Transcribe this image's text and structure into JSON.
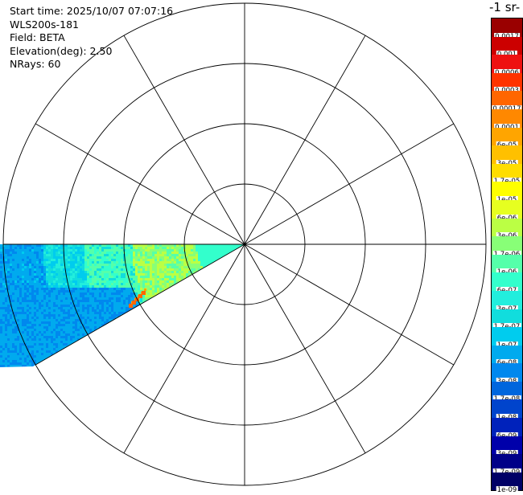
{
  "info": {
    "start_time": "Start time: 2025/10/07 07:07:16",
    "instrument": "WLS200s-181",
    "field": "Field: BETA",
    "elevation": "Elevation(deg): 2.50",
    "nrays": "NRays: 60"
  },
  "units_label": "-1 sr-",
  "chart_data": {
    "type": "heatmap",
    "projection": "polar",
    "field": "BETA",
    "rings": 4,
    "spokes_every_deg": 30,
    "sector_azimuth_deg": [
      240,
      270
    ],
    "colorbar": {
      "scale": "log",
      "ticks": [
        "0.0017",
        "0.001",
        "0.0006",
        "0.0003",
        "0.00017",
        "0.0001",
        "6e-05",
        "3e-05",
        "1.7e-05",
        "1e-05",
        "6e-06",
        "3e-06",
        "1.7e-06",
        "1e-06",
        "6e-07",
        "3e-07",
        "1.7e-07",
        "1e-07",
        "6e-08",
        "3e-08",
        "1.7e-08",
        "1e-08",
        "6e-09",
        "3e-09",
        "1.7e-09",
        "1e-09"
      ],
      "colors": [
        "#9a0000",
        "#cc0000",
        "#ee1111",
        "#ff3300",
        "#ff6600",
        "#ff8800",
        "#ffa500",
        "#ffc000",
        "#ffdd00",
        "#ffff00",
        "#e6ff20",
        "#bbff44",
        "#88ff77",
        "#55ffaa",
        "#33ffcc",
        "#22eedd",
        "#11dddd",
        "#00ccee",
        "#00aaee",
        "#0088ee",
        "#0066dd",
        "#0044cc",
        "#0022bb",
        "#0000aa",
        "#000088",
        "#000066"
      ]
    }
  }
}
